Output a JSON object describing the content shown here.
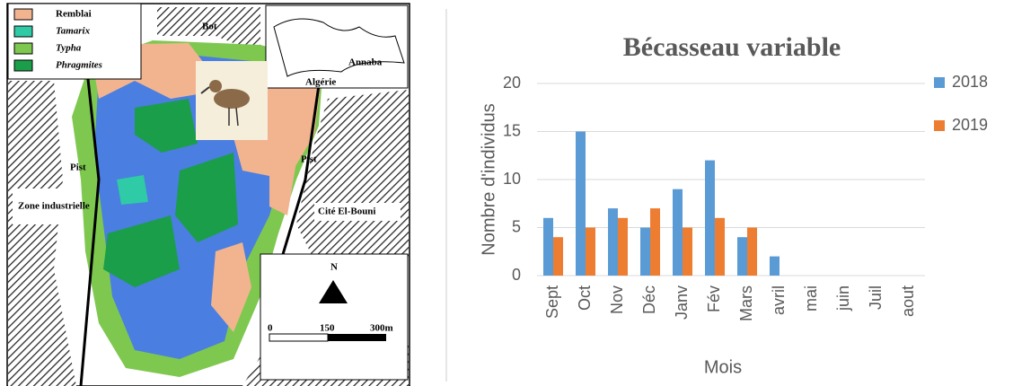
{
  "map": {
    "legend": [
      "Remblai",
      "Tamarix",
      "Typha",
      "Phragmites"
    ],
    "labels": {
      "bot": "Bot",
      "annaba": "Annaba",
      "algerie": "Algérie",
      "pist_left": "Pist",
      "pist_right": "Pist",
      "zone": "Zone industrielle",
      "cite": "Cité El-Bouni",
      "north": "N"
    },
    "scale": [
      "0",
      "150",
      "300m"
    ]
  },
  "chart_data": {
    "type": "bar",
    "title": "Bécasseau variable",
    "categories": [
      "Sept",
      "Oct",
      "Nov",
      "Déc",
      "Janv",
      "Fév",
      "Mars",
      "avril",
      "mai",
      "juin",
      "Juil",
      "aout"
    ],
    "series": [
      {
        "name": "2018",
        "color": "#5b9bd5",
        "values": [
          6,
          15,
          7,
          5,
          9,
          12,
          4,
          2,
          0,
          0,
          0,
          0
        ]
      },
      {
        "name": "2019",
        "color": "#ed7d31",
        "values": [
          4,
          5,
          6,
          7,
          5,
          6,
          5,
          0,
          0,
          0,
          0,
          0
        ]
      }
    ],
    "x_label": "Mois",
    "y_label": "Nombre  d'individus",
    "ylim": [
      0,
      20
    ],
    "yticks": [
      0,
      5,
      10,
      15,
      20
    ],
    "grid": true,
    "legend": "right"
  }
}
